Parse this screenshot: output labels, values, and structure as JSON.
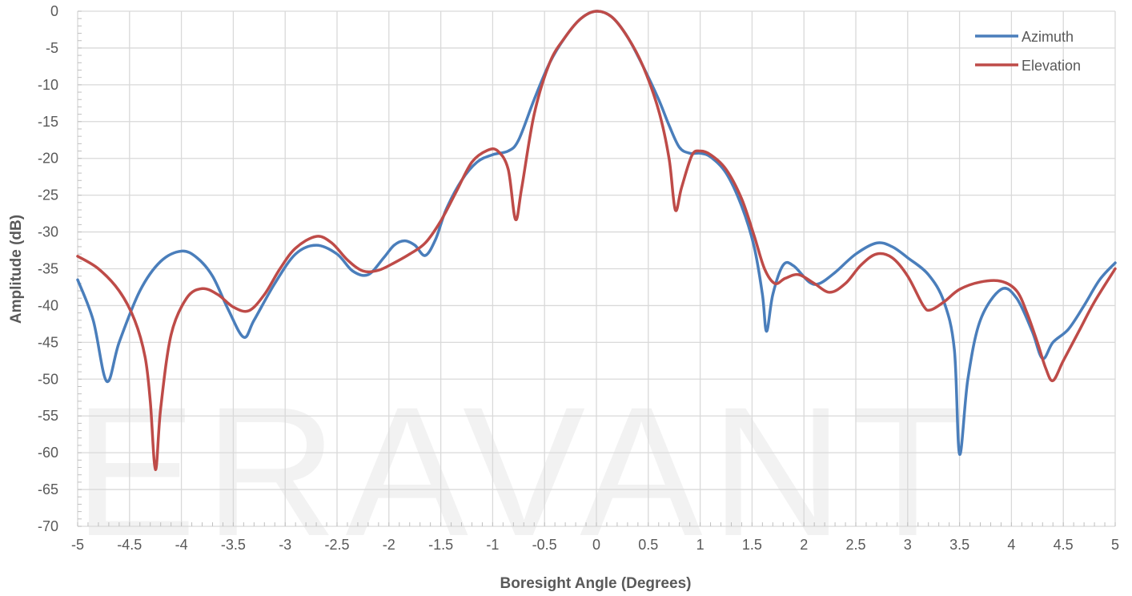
{
  "watermark": "ERAVANT",
  "colors": {
    "azimuth": "#4a7ebb",
    "elevation": "#be4b48",
    "grid": "#d9d9d9",
    "text": "#595959"
  },
  "chart_data": {
    "type": "line",
    "xlabel": "Boresight Angle (Degrees)",
    "ylabel": "Amplitude (dB)",
    "xlim": [
      -5,
      5
    ],
    "ylim": [
      -70,
      0
    ],
    "x_ticks": [
      -5,
      -4.5,
      -4,
      -3.5,
      -3,
      -2.5,
      -2,
      -1.5,
      -1,
      -0.5,
      0,
      0.5,
      1,
      1.5,
      2,
      2.5,
      3,
      3.5,
      4,
      4.5,
      5
    ],
    "x_tick_labels": [
      "-5",
      "-4.5",
      "-4",
      "-3.5",
      "-3",
      "-2.5",
      "-2",
      "-1.5",
      "-1",
      "-0.5",
      "0",
      "0.5",
      "1",
      "1.5",
      "2",
      "2.5",
      "3",
      "3.5",
      "4",
      "4.5",
      "5"
    ],
    "y_ticks": [
      0,
      -5,
      -10,
      -15,
      -20,
      -25,
      -30,
      -35,
      -40,
      -45,
      -50,
      -55,
      -60,
      -65,
      -70
    ],
    "y_tick_labels": [
      "0",
      "-5",
      "-10",
      "-15",
      "-20",
      "-25",
      "-30",
      "-35",
      "-40",
      "-45",
      "-50",
      "-55",
      "-60",
      "-65",
      "-70"
    ],
    "grid": true,
    "legend_position": "top-right",
    "series": [
      {
        "name": "Azimuth",
        "color": "#4a7ebb",
        "points": [
          [
            -5,
            -36.5
          ],
          [
            -4.85,
            -42
          ],
          [
            -4.72,
            -50.3
          ],
          [
            -4.6,
            -45
          ],
          [
            -4.4,
            -38
          ],
          [
            -4.2,
            -34
          ],
          [
            -4.0,
            -32.6
          ],
          [
            -3.85,
            -33.5
          ],
          [
            -3.7,
            -36
          ],
          [
            -3.55,
            -40.5
          ],
          [
            -3.4,
            -44.3
          ],
          [
            -3.3,
            -42
          ],
          [
            -3.1,
            -37
          ],
          [
            -2.9,
            -33
          ],
          [
            -2.7,
            -31.8
          ],
          [
            -2.5,
            -33
          ],
          [
            -2.35,
            -35.3
          ],
          [
            -2.2,
            -35.8
          ],
          [
            -2.05,
            -33.5
          ],
          [
            -1.95,
            -31.8
          ],
          [
            -1.85,
            -31.2
          ],
          [
            -1.75,
            -31.8
          ],
          [
            -1.65,
            -33.2
          ],
          [
            -1.55,
            -31
          ],
          [
            -1.45,
            -27
          ],
          [
            -1.3,
            -23
          ],
          [
            -1.15,
            -20.5
          ],
          [
            -1.0,
            -19.5
          ],
          [
            -0.85,
            -19
          ],
          [
            -0.75,
            -17.5
          ],
          [
            -0.6,
            -12
          ],
          [
            -0.45,
            -7
          ],
          [
            -0.3,
            -3.5
          ],
          [
            -0.15,
            -1
          ],
          [
            0,
            0
          ],
          [
            0.15,
            -0.8
          ],
          [
            0.3,
            -3.5
          ],
          [
            0.45,
            -7.5
          ],
          [
            0.6,
            -12
          ],
          [
            0.7,
            -15.5
          ],
          [
            0.8,
            -18.5
          ],
          [
            0.9,
            -19.3
          ],
          [
            1.0,
            -19.3
          ],
          [
            1.1,
            -19.8
          ],
          [
            1.25,
            -22
          ],
          [
            1.4,
            -26.5
          ],
          [
            1.52,
            -32
          ],
          [
            1.6,
            -38.5
          ],
          [
            1.64,
            -43.5
          ],
          [
            1.7,
            -38.5
          ],
          [
            1.8,
            -34.5
          ],
          [
            1.9,
            -34.6
          ],
          [
            2.05,
            -36.8
          ],
          [
            2.15,
            -37
          ],
          [
            2.3,
            -35.5
          ],
          [
            2.5,
            -33
          ],
          [
            2.7,
            -31.5
          ],
          [
            2.85,
            -32
          ],
          [
            3.0,
            -33.5
          ],
          [
            3.2,
            -35.8
          ],
          [
            3.35,
            -39.5
          ],
          [
            3.45,
            -46
          ],
          [
            3.5,
            -60.2
          ],
          [
            3.58,
            -50
          ],
          [
            3.7,
            -42
          ],
          [
            3.9,
            -37.8
          ],
          [
            4.05,
            -39
          ],
          [
            4.2,
            -43.5
          ],
          [
            4.3,
            -47.2
          ],
          [
            4.4,
            -45
          ],
          [
            4.55,
            -43.2
          ],
          [
            4.7,
            -40
          ],
          [
            4.85,
            -36.5
          ],
          [
            5.0,
            -34.2
          ]
        ]
      },
      {
        "name": "Elevation",
        "color": "#be4b48",
        "points": [
          [
            -5,
            -33.3
          ],
          [
            -4.8,
            -35
          ],
          [
            -4.6,
            -38
          ],
          [
            -4.45,
            -42
          ],
          [
            -4.35,
            -47
          ],
          [
            -4.3,
            -53
          ],
          [
            -4.25,
            -62.3
          ],
          [
            -4.2,
            -54
          ],
          [
            -4.1,
            -44
          ],
          [
            -3.95,
            -39
          ],
          [
            -3.8,
            -37.7
          ],
          [
            -3.65,
            -38.5
          ],
          [
            -3.5,
            -40.2
          ],
          [
            -3.35,
            -40.7
          ],
          [
            -3.2,
            -38.5
          ],
          [
            -3.05,
            -35
          ],
          [
            -2.9,
            -32.2
          ],
          [
            -2.7,
            -30.6
          ],
          [
            -2.55,
            -31.5
          ],
          [
            -2.4,
            -33.8
          ],
          [
            -2.25,
            -35.3
          ],
          [
            -2.1,
            -35.2
          ],
          [
            -1.95,
            -34.2
          ],
          [
            -1.8,
            -33
          ],
          [
            -1.65,
            -31.5
          ],
          [
            -1.5,
            -28.5
          ],
          [
            -1.35,
            -24.5
          ],
          [
            -1.2,
            -20.5
          ],
          [
            -1.05,
            -18.9
          ],
          [
            -0.95,
            -19
          ],
          [
            -0.85,
            -21.5
          ],
          [
            -0.78,
            -28.3
          ],
          [
            -0.72,
            -24
          ],
          [
            -0.6,
            -14
          ],
          [
            -0.45,
            -7
          ],
          [
            -0.3,
            -3.5
          ],
          [
            -0.15,
            -1
          ],
          [
            0,
            0
          ],
          [
            0.15,
            -0.8
          ],
          [
            0.3,
            -3.5
          ],
          [
            0.45,
            -7.5
          ],
          [
            0.6,
            -13.5
          ],
          [
            0.7,
            -20
          ],
          [
            0.76,
            -27
          ],
          [
            0.82,
            -24
          ],
          [
            0.92,
            -19.6
          ],
          [
            1.0,
            -19
          ],
          [
            1.1,
            -19.5
          ],
          [
            1.25,
            -21.5
          ],
          [
            1.4,
            -25.5
          ],
          [
            1.52,
            -30.5
          ],
          [
            1.62,
            -35
          ],
          [
            1.72,
            -37
          ],
          [
            1.82,
            -36.3
          ],
          [
            1.95,
            -35.8
          ],
          [
            2.1,
            -37
          ],
          [
            2.25,
            -38.2
          ],
          [
            2.4,
            -37
          ],
          [
            2.55,
            -34.5
          ],
          [
            2.7,
            -33
          ],
          [
            2.85,
            -33.5
          ],
          [
            3.0,
            -36
          ],
          [
            3.15,
            -40
          ],
          [
            3.22,
            -40.6
          ],
          [
            3.35,
            -39.5
          ],
          [
            3.5,
            -37.8
          ],
          [
            3.7,
            -36.8
          ],
          [
            3.9,
            -36.7
          ],
          [
            4.05,
            -38
          ],
          [
            4.15,
            -41
          ],
          [
            4.25,
            -45
          ],
          [
            4.33,
            -48.5
          ],
          [
            4.4,
            -50.2
          ],
          [
            4.5,
            -47.5
          ],
          [
            4.65,
            -43.5
          ],
          [
            4.8,
            -39.5
          ],
          [
            5.0,
            -35
          ]
        ]
      }
    ]
  }
}
